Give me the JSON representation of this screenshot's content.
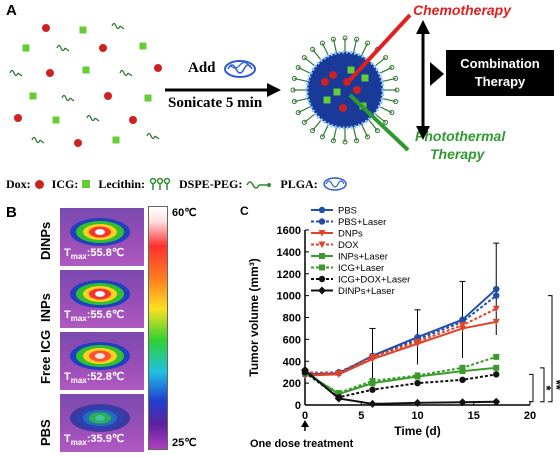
{
  "panelA": {
    "letter": "A",
    "arrow_label_top": "Add",
    "arrow_label_bottom": "Sonicate 5 min",
    "chemo_label": "Chemotherapy",
    "photothermal_label_1": "Photothermal",
    "photothermal_label_2": "Therapy",
    "combination_label_1": "Combination",
    "combination_label_2": "Therapy",
    "legend": {
      "dox": "Dox:",
      "icg": "ICG:",
      "lecithin": "Lecithin:",
      "dspe": "DSPE-PEG:",
      "plga": "PLGA:"
    },
    "colors": {
      "dox": "#cc2222",
      "icg": "#66cc33",
      "chemo": "#e02020",
      "photo": "#2e9a2e"
    }
  },
  "panelB": {
    "letter": "B",
    "scale_top": "60℃",
    "scale_bottom": "25℃",
    "images": [
      {
        "label": "DINPs",
        "tmax_prefix": "T",
        "tmax_sub": "max",
        "tmax_value": ":55.8℃"
      },
      {
        "label": "INPs",
        "tmax_prefix": "T",
        "tmax_sub": "max",
        "tmax_value": ":55.6℃"
      },
      {
        "label": "Free ICG",
        "tmax_prefix": "T",
        "tmax_sub": "max",
        "tmax_value": ":52.8℃"
      },
      {
        "label": "PBS",
        "tmax_prefix": "T",
        "tmax_sub": "max",
        "tmax_value": ":35.9℃"
      }
    ]
  },
  "panelC": {
    "letter": "C",
    "annotation": "One dose treatment",
    "significance": [
      "*",
      "**",
      "**"
    ]
  },
  "chart_data": {
    "type": "line",
    "xlabel": "Time (d)",
    "ylabel": "Tumor volume (mm³)",
    "xlim": [
      0,
      20
    ],
    "ylim": [
      0,
      1600
    ],
    "xticks": [
      0,
      5,
      10,
      15,
      20
    ],
    "yticks": [
      0,
      200,
      400,
      600,
      800,
      1000,
      1200,
      1400,
      1600
    ],
    "x": [
      0,
      3,
      6,
      10,
      14,
      17
    ],
    "series": [
      {
        "name": "PBS",
        "color": "#1f4fa8",
        "dash": false,
        "marker": "circle",
        "values": [
          280,
          290,
          450,
          620,
          780,
          1060
        ],
        "err": [
          0,
          0,
          250,
          250,
          350,
          420
        ]
      },
      {
        "name": "PBS+Laser",
        "color": "#1f4fa8",
        "dash": true,
        "marker": "circle",
        "values": [
          290,
          300,
          440,
          600,
          760,
          1000
        ],
        "err": [
          0,
          0,
          0,
          0,
          0,
          0
        ]
      },
      {
        "name": "DNPs",
        "color": "#e0422a",
        "dash": false,
        "marker": "triangle",
        "values": [
          270,
          280,
          420,
          560,
          700,
          760
        ],
        "err": [
          0,
          0,
          0,
          0,
          0,
          0
        ]
      },
      {
        "name": "DOX",
        "color": "#e0422a",
        "dash": true,
        "marker": "triangle",
        "values": [
          300,
          290,
          440,
          580,
          730,
          880
        ],
        "err": [
          0,
          0,
          0,
          0,
          0,
          0
        ]
      },
      {
        "name": "INPs+Laser",
        "color": "#3a9a2a",
        "dash": false,
        "marker": "square",
        "values": [
          300,
          100,
          200,
          260,
          310,
          340
        ],
        "err": [
          0,
          0,
          0,
          0,
          0,
          0
        ]
      },
      {
        "name": "ICG+Laser",
        "color": "#3a9a2a",
        "dash": true,
        "marker": "square",
        "values": [
          290,
          110,
          220,
          270,
          340,
          440
        ],
        "err": [
          0,
          0,
          0,
          0,
          0,
          0
        ]
      },
      {
        "name": "ICG+DOX+Laser",
        "color": "#111111",
        "dash": true,
        "marker": "circle",
        "values": [
          300,
          70,
          140,
          200,
          230,
          280
        ],
        "err": [
          0,
          0,
          0,
          0,
          0,
          0
        ]
      },
      {
        "name": "DINPs+Laser",
        "color": "#111111",
        "dash": false,
        "marker": "diamond",
        "values": [
          320,
          60,
          10,
          20,
          25,
          30
        ],
        "err": [
          0,
          0,
          0,
          0,
          0,
          0
        ]
      }
    ]
  }
}
